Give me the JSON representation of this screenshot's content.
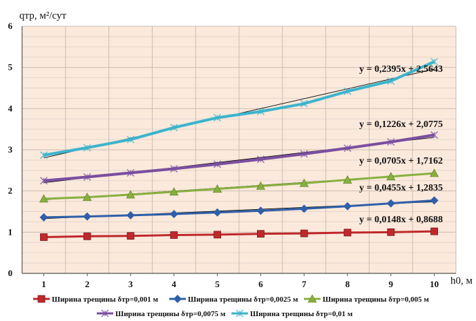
{
  "chart_data": {
    "type": "line",
    "ylabel": "qтр, м²/сут",
    "xlabel": "h0, м",
    "x": [
      1,
      2,
      3,
      4,
      5,
      6,
      7,
      8,
      9,
      10
    ],
    "xlim": [
      0.5,
      10.5
    ],
    "ylim": [
      0,
      6
    ],
    "yticks": [
      0,
      1,
      2,
      3,
      4,
      5,
      6
    ],
    "grid": true,
    "legend_position": "bottom",
    "series": [
      {
        "name": "Ширина трещины δтр=0,001 м",
        "color": "#c0282c",
        "marker": "square",
        "values": [
          0.88,
          0.9,
          0.91,
          0.93,
          0.94,
          0.96,
          0.97,
          0.99,
          1.0,
          1.02
        ],
        "trendline": {
          "label": "y = 0,0148x + 0,8688",
          "slope": 0.0148,
          "intercept": 0.8688
        }
      },
      {
        "name": "Ширина трещины δтр=0,0025 м",
        "color": "#2f5fa8",
        "marker": "diamond",
        "values": [
          1.36,
          1.38,
          1.41,
          1.44,
          1.48,
          1.52,
          1.57,
          1.63,
          1.7,
          1.77
        ],
        "trendline": {
          "label": "y = 0,0455x + 1,2835",
          "slope": 0.0455,
          "intercept": 1.2835
        }
      },
      {
        "name": "Ширина трещины δтр=0,005 м",
        "color": "#88b040",
        "marker": "triangle",
        "values": [
          1.81,
          1.85,
          1.91,
          1.98,
          2.05,
          2.12,
          2.19,
          2.27,
          2.35,
          2.43
        ],
        "trendline": {
          "label": "y = 0,0705x + 1,7162",
          "slope": 0.0705,
          "intercept": 1.7162
        }
      },
      {
        "name": "Ширина трещины δтр=0,0075 м",
        "color": "#7b4fa0",
        "marker": "x",
        "values": [
          2.25,
          2.34,
          2.44,
          2.54,
          2.65,
          2.77,
          2.9,
          3.04,
          3.19,
          3.36
        ],
        "trendline": {
          "label": "y = 0,1226x + 2,0775",
          "slope": 0.1226,
          "intercept": 2.0775
        }
      },
      {
        "name": "Ширина трещины δтр=0,01 м",
        "color": "#3cb4cc",
        "marker": "x",
        "values": [
          2.87,
          3.05,
          3.25,
          3.54,
          3.78,
          3.93,
          4.12,
          4.42,
          4.67,
          5.14
        ],
        "trendline": {
          "label": "y = 0,2395x + 2,5643",
          "slope": 0.2395,
          "intercept": 2.5643
        }
      }
    ]
  }
}
